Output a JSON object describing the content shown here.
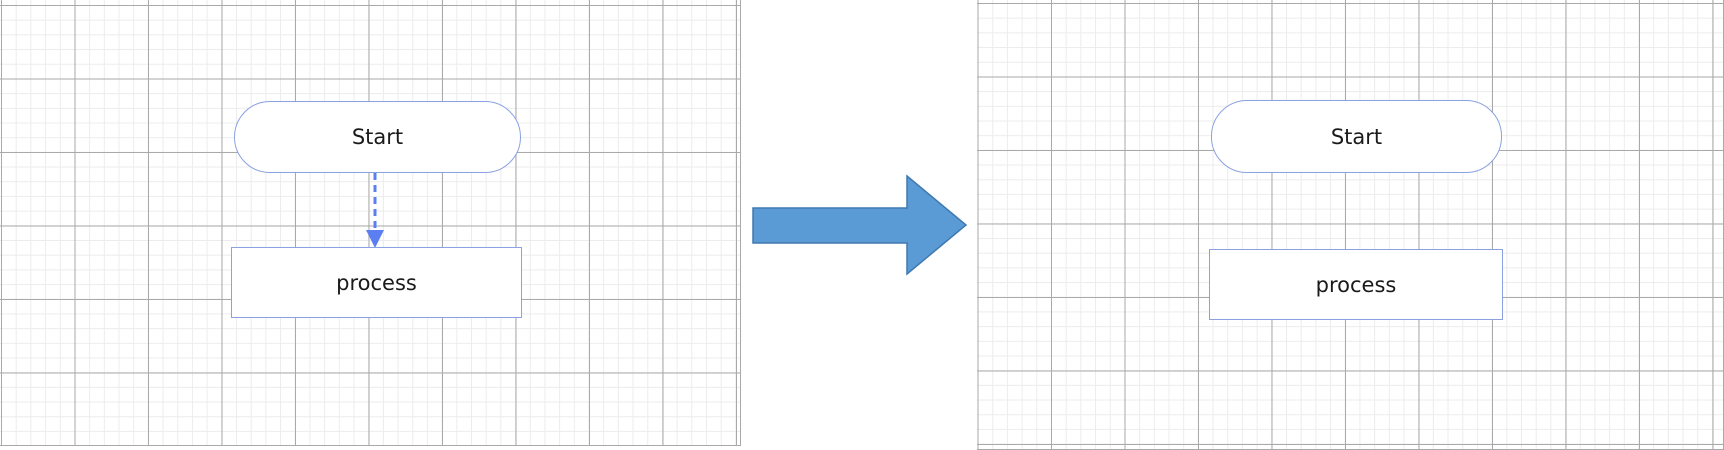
{
  "before": {
    "start_label": "Start",
    "process_label": "process",
    "connector": {
      "style": "dashed",
      "color": "#5b7ff0"
    }
  },
  "after": {
    "start_label": "Start",
    "process_label": "process"
  },
  "transition_arrow": {
    "color": "#5b9bd5",
    "border": "#3f79b0"
  },
  "shape_border_color": "#8aa2e2"
}
